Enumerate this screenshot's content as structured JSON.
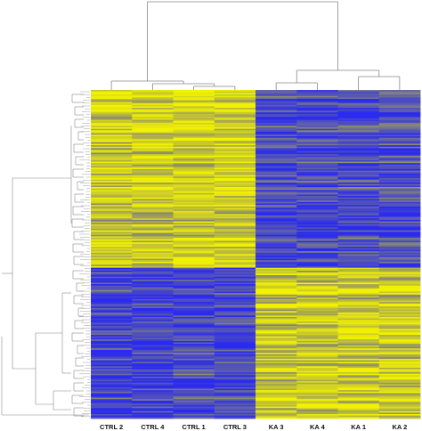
{
  "chart_data": {
    "type": "heatmap",
    "title": "",
    "xlabel": "",
    "ylabel": "",
    "columns": [
      "CTRL 2",
      "CTRL 4",
      "CTRL 1",
      "CTRL 3",
      "KA 3",
      "KA 4",
      "KA 1",
      "KA 2"
    ],
    "groups": [
      {
        "name": "CTRL",
        "columns": [
          "CTRL 2",
          "CTRL 4",
          "CTRL 1",
          "CTRL 3"
        ]
      },
      {
        "name": "KA",
        "columns": [
          "KA 3",
          "KA 4",
          "KA 1",
          "KA 2"
        ]
      }
    ],
    "row_clusters": [
      {
        "cluster": 1,
        "pattern": {
          "CTRL": "high",
          "KA": "low"
        }
      },
      {
        "cluster": 2,
        "pattern": {
          "CTRL": "low",
          "KA": "high"
        }
      }
    ],
    "color_scale": {
      "low": "#2a2af0",
      "mid": "#8a8a70",
      "high": "#f2f200"
    },
    "column_dendrogram": true,
    "row_dendrogram": true,
    "legend": "none",
    "grid": false
  }
}
